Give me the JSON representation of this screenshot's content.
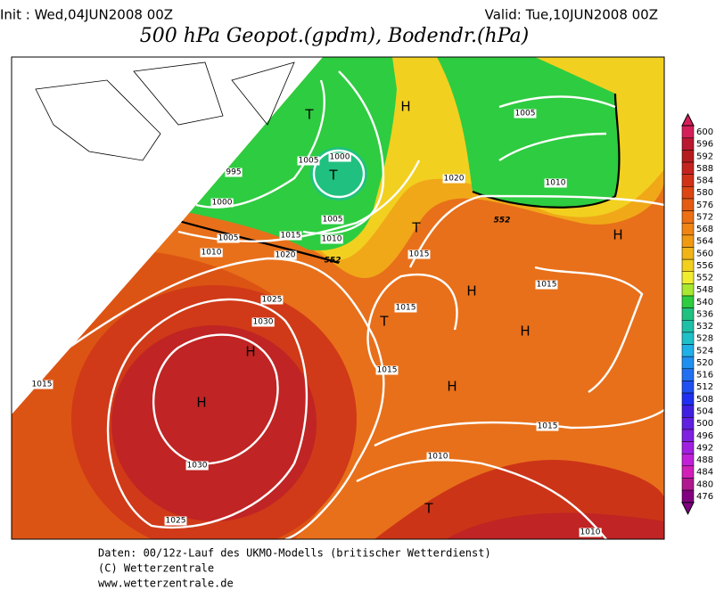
{
  "header": {
    "init": "Init : Wed,04JUN2008 00Z",
    "valid": "Valid: Tue,10JUN2008 00Z",
    "title": "500 hPa Geopot.(gpdm), Bodendr.(hPa)"
  },
  "isobar_labels": [
    995,
    1000,
    1005,
    1000,
    1005,
    1010,
    1005,
    1010,
    1015,
    1020,
    1025,
    1030,
    1015,
    1015,
    1015,
    1015,
    1015,
    1010,
    1010,
    1030,
    1025,
    1015,
    1005,
    1010,
    1020
  ],
  "geopot_labels": [
    552,
    552
  ],
  "pressure_centers": [
    "H",
    "H",
    "H",
    "H",
    "H",
    "H",
    "H",
    "T",
    "T",
    "T",
    "T",
    "T"
  ],
  "colorbar": {
    "levels": [
      600,
      596,
      592,
      588,
      584,
      580,
      576,
      572,
      568,
      564,
      560,
      556,
      552,
      548,
      540,
      536,
      532,
      528,
      524,
      520,
      516,
      512,
      508,
      504,
      500,
      496,
      492,
      488,
      484,
      480,
      476
    ],
    "colors": [
      "#d4205a",
      "#b81830",
      "#b41c1c",
      "#c42420",
      "#d03218",
      "#dc4614",
      "#e45a12",
      "#ec7014",
      "#f08414",
      "#f09a14",
      "#f0b418",
      "#f2d020",
      "#f0ec30",
      "#a8e830",
      "#2ecc40",
      "#20c080",
      "#20c0a8",
      "#20c0c8",
      "#20b0e8",
      "#2090f0",
      "#2070f0",
      "#2050f0",
      "#2030f0",
      "#4020e0",
      "#6020e0",
      "#8020e0",
      "#a020e0",
      "#c020d8",
      "#d020b8",
      "#b01890",
      "#800080"
    ]
  },
  "footer": [
    "Daten: 00/12z-Lauf des UKMO-Modells (britischer Wetterdienst)",
    "(C) Wetterzentrale",
    "www.wetterzentrale.de"
  ]
}
